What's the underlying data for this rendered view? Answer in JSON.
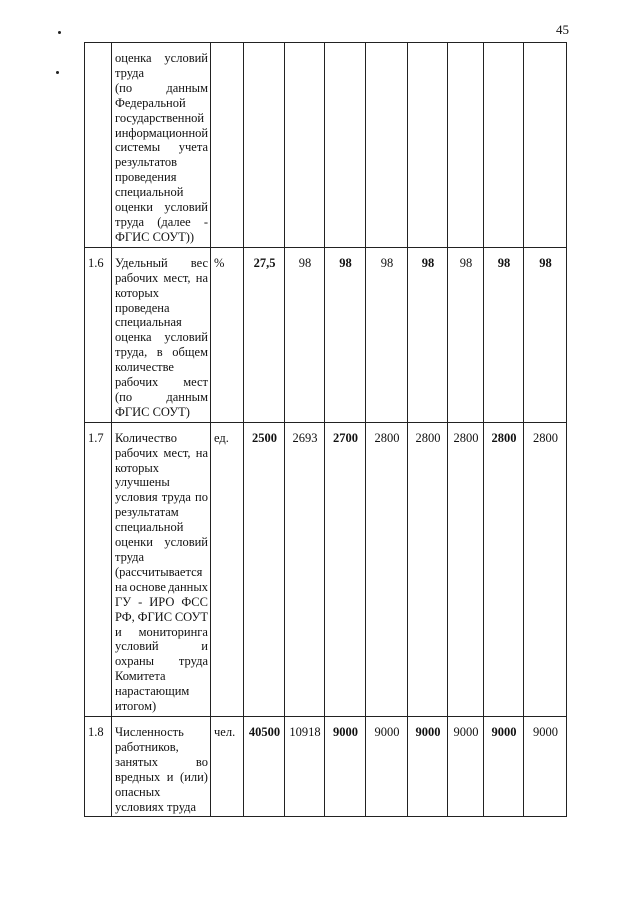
{
  "page_number": "45",
  "table": {
    "rows": [
      {
        "num": "",
        "lines": [
          "оценка условий",
          "труда",
          "(по данным",
          "Федеральной",
          "государственной",
          "информационной",
          "системы учета",
          "результатов",
          "проведения",
          "специальной",
          "оценки условий",
          "труда (далее -",
          "ФГИС СОУТ))"
        ],
        "unit": "",
        "values": [
          "",
          "",
          "",
          "",
          "",
          "",
          "",
          "",
          ""
        ],
        "bold": [
          false,
          false,
          false,
          false,
          false,
          false,
          false,
          false,
          false
        ]
      },
      {
        "num": "1.6",
        "lines": [
          "Удельный вес",
          "рабочих мест, на",
          "которых",
          "проведена",
          "специальная",
          "оценка условий",
          "труда, в общем",
          "количестве",
          "рабочих мест",
          "(по данным",
          "ФГИС СОУТ)"
        ],
        "unit": "%",
        "values": [
          "27,5",
          "98",
          "98",
          "98",
          "98",
          "98",
          "98",
          "98"
        ],
        "bold": [
          true,
          false,
          true,
          false,
          true,
          false,
          true,
          true
        ]
      },
      {
        "num": "1.7",
        "lines": [
          "Количество",
          "рабочих мест, на",
          "которых",
          "улучшены",
          "условия труда по",
          "результатам",
          "специальной",
          "оценки условий",
          "труда",
          "(рассчитывается",
          "на основе данных",
          "ГУ - ИРО ФСС",
          "РФ, ФГИС СОУТ",
          "и мониторинга",
          "условий и",
          "охраны труда",
          "Комитета",
          "нарастающим",
          "итогом)"
        ],
        "unit": "ед.",
        "values": [
          "2500",
          "2693",
          "2700",
          "2800",
          "2800",
          "2800",
          "2800",
          "2800"
        ],
        "bold": [
          true,
          false,
          true,
          false,
          false,
          false,
          true,
          false
        ]
      },
      {
        "num": "1.8",
        "lines": [
          "Численность",
          "работников,",
          "занятых во",
          "вредных и (или)",
          "опасных",
          "условиях труда"
        ],
        "unit": "чел.",
        "values": [
          "40500",
          "10918",
          "9000",
          "9000",
          "9000",
          "9000",
          "9000",
          "9000"
        ],
        "bold": [
          true,
          false,
          true,
          false,
          true,
          false,
          true,
          false
        ]
      }
    ]
  }
}
